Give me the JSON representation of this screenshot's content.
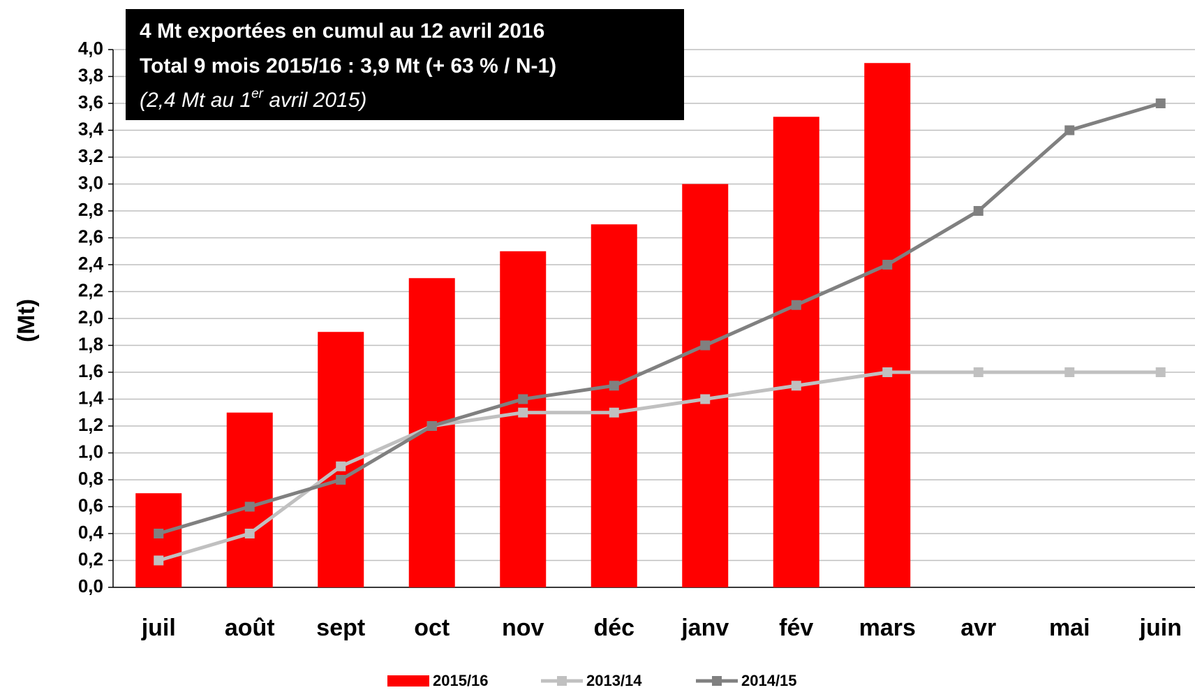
{
  "chart_data": {
    "type": "bar",
    "annotation": {
      "lines": [
        "4 Mt exportées en cumul au 12 avril 2016",
        "Total 9 mois 2015/16 : 3,9 Mt (+ 63 % / N-1)"
      ],
      "note": {
        "before": "(2,4 Mt au 1",
        "sup": "er",
        "after": " avril 2015)"
      }
    },
    "ylabel": "(Mt)",
    "categories": [
      "juil",
      "août",
      "sept",
      "oct",
      "nov",
      "déc",
      "janv",
      "fév",
      "mars",
      "avr",
      "mai",
      "juin"
    ],
    "series": [
      {
        "name": "2015/16",
        "type": "bar",
        "color": "#ff0000",
        "values": [
          0.7,
          1.3,
          1.9,
          2.3,
          2.5,
          2.7,
          3.0,
          3.5,
          3.9,
          null,
          null,
          null
        ]
      },
      {
        "name": "2013/14",
        "type": "line",
        "color": "#c0c0c0",
        "values": [
          0.2,
          0.4,
          0.9,
          1.2,
          1.3,
          1.3,
          1.4,
          1.5,
          1.6,
          1.6,
          1.6,
          1.6
        ]
      },
      {
        "name": "2014/15",
        "type": "line",
        "color": "#808080",
        "values": [
          0.4,
          0.6,
          0.8,
          1.2,
          1.4,
          1.5,
          1.8,
          2.1,
          2.4,
          2.8,
          3.4,
          3.6
        ]
      }
    ],
    "ylim": [
      0,
      4
    ],
    "yticks": [
      {
        "value": 0,
        "label": "0,0"
      },
      {
        "value": 0.2,
        "label": "0,2"
      },
      {
        "value": 0.4,
        "label": "0,4"
      },
      {
        "value": 0.6,
        "label": "0,6"
      },
      {
        "value": 0.8,
        "label": "0,8"
      },
      {
        "value": 1,
        "label": "1,0"
      },
      {
        "value": 1.2,
        "label": "1,2"
      },
      {
        "value": 1.4,
        "label": "1,4"
      },
      {
        "value": 1.6,
        "label": "1,6"
      },
      {
        "value": 1.8,
        "label": "1,8"
      },
      {
        "value": 2,
        "label": "2,0"
      },
      {
        "value": 2.2,
        "label": "2,2"
      },
      {
        "value": 2.4,
        "label": "2,4"
      },
      {
        "value": 2.6,
        "label": "2,6"
      },
      {
        "value": 2.8,
        "label": "2,8"
      },
      {
        "value": 3,
        "label": "3,0"
      },
      {
        "value": 3.2,
        "label": "3,2"
      },
      {
        "value": 3.4,
        "label": "3,4"
      },
      {
        "value": 3.6,
        "label": "3,6"
      },
      {
        "value": 3.8,
        "label": "3,8"
      },
      {
        "value": 4,
        "label": "4,0"
      }
    ],
    "grid": true,
    "legend": "bottom"
  }
}
